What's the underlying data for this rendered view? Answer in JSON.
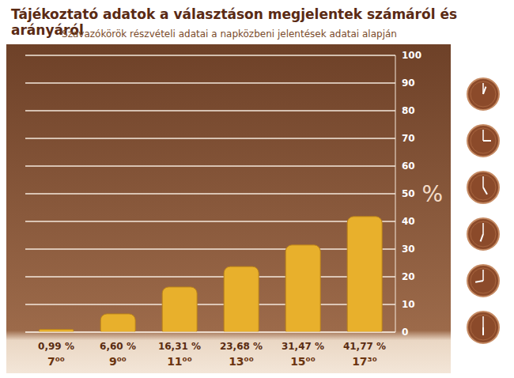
{
  "chart_data": {
    "type": "bar",
    "title": "Tájékoztató adatok a választáson megjelentek számáról és arányáról",
    "subtitle": "Szavazókörök részvételi adatai a napközbeni jelentések adatai alapján",
    "categories": [
      "7⁰⁰",
      "9⁰⁰",
      "11⁰⁰",
      "13⁰⁰",
      "15⁰⁰",
      "17³⁰"
    ],
    "values": [
      0.99,
      6.6,
      16.31,
      23.68,
      31.47,
      41.77
    ],
    "value_labels": [
      "0,99 %",
      "6,60 %",
      "16,31 %",
      "23,68 %",
      "31,47 %",
      "41,77 %"
    ],
    "color": "#e8b02c",
    "ylim": [
      0,
      100
    ],
    "yticks": [
      0,
      10,
      20,
      30,
      40,
      50,
      60,
      70,
      80,
      90,
      100
    ],
    "y_label": "%",
    "grid": true,
    "data_labels": true
  }
}
